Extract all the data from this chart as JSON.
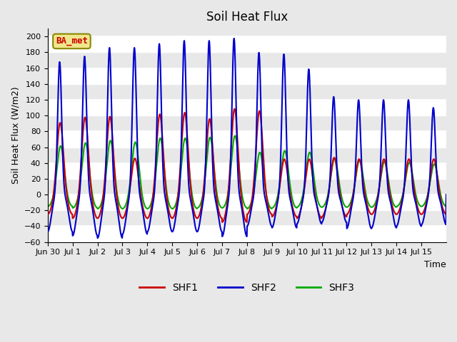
{
  "title": "Soil Heat Flux",
  "ylabel": "Soil Heat Flux (W/m2)",
  "xlabel": "Time",
  "ylim": [
    -60,
    210
  ],
  "yticks": [
    -60,
    -40,
    -20,
    0,
    20,
    40,
    60,
    80,
    100,
    120,
    140,
    160,
    180,
    200
  ],
  "background_color": "#e8e8e8",
  "plot_bg_color": "#e8e8e8",
  "ba_met_label": "BA_met",
  "ba_met_color": "#cc0000",
  "ba_met_bg": "#f0e68c",
  "line_colors": {
    "SHF1": "#cc0000",
    "SHF2": "#0000cc",
    "SHF3": "#00aa00"
  },
  "line_widths": {
    "SHF1": 1.5,
    "SHF2": 1.5,
    "SHF3": 1.5
  },
  "xtick_labels": [
    "Jun 30",
    "Jul 1",
    "Jul 2",
    "Jul 3",
    "Jul 4",
    "Jul 5",
    "Jul 6",
    "Jul 7",
    "Jul 8",
    "Jul 9",
    "Jul 10",
    "Jul 11",
    "Jul 12",
    "Jul 13",
    "Jul 14",
    "Jul 15"
  ],
  "shf1_peaks": [
    92,
    99,
    100,
    47,
    103,
    105,
    97,
    110,
    107,
    46,
    46,
    48,
    46,
    46,
    46,
    46
  ],
  "shf2_peaks": [
    168,
    175,
    186,
    186,
    191,
    195,
    195,
    198,
    180,
    178,
    159,
    124,
    120,
    120,
    120,
    110
  ],
  "shf3_peaks": [
    63,
    67,
    70,
    68,
    73,
    73,
    74,
    76,
    55,
    57,
    55,
    47,
    45,
    43,
    42,
    40
  ],
  "shf1_valleys": [
    -25,
    -30,
    -30,
    -30,
    -30,
    -30,
    -30,
    -35,
    -25,
    -28,
    -30,
    -28,
    -25,
    -25,
    -25,
    -25
  ],
  "shf2_valleys": [
    -47,
    -52,
    -55,
    -50,
    -47,
    -47,
    -47,
    -53,
    -40,
    -42,
    -37,
    -35,
    -43,
    -42,
    -40,
    -38
  ],
  "shf3_valleys": [
    -15,
    -17,
    -18,
    -18,
    -18,
    -18,
    -17,
    -17,
    -18,
    -17,
    -16,
    -16,
    -16,
    -16,
    -15,
    -15
  ]
}
